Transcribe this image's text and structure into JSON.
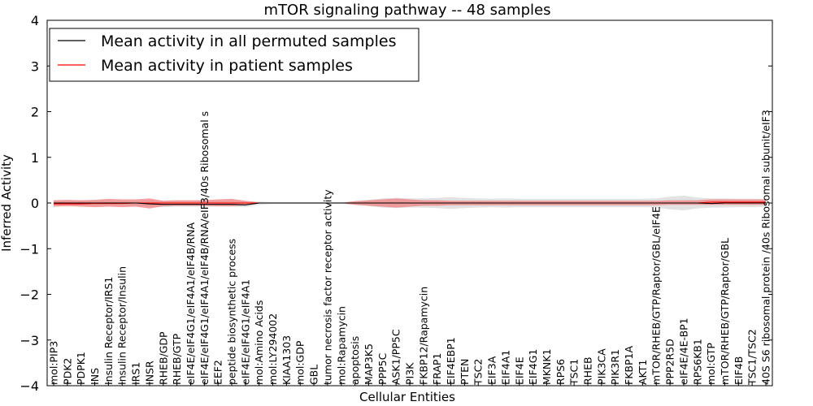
{
  "chart_data": {
    "type": "line",
    "title": "mTOR signaling pathway -- 48 samples",
    "xlabel": "Cellular Entities",
    "ylabel": "Inferred Activity",
    "ylim": [
      -4,
      4
    ],
    "yticks": [
      {
        "value": -4,
        "label": "−4"
      },
      {
        "value": -3,
        "label": "−3"
      },
      {
        "value": -2,
        "label": "−2"
      },
      {
        "value": -1,
        "label": "−1"
      },
      {
        "value": 0,
        "label": "0"
      },
      {
        "value": 1,
        "label": "1"
      },
      {
        "value": 2,
        "label": "2"
      },
      {
        "value": 3,
        "label": "3"
      },
      {
        "value": 4,
        "label": "4"
      }
    ],
    "legend": {
      "position": "top-left",
      "entries": [
        {
          "label": "Mean activity in all permuted samples",
          "color": "#000000"
        },
        {
          "label": "Mean activity in patient samples",
          "color": "#ff0000"
        }
      ]
    },
    "band_colors": {
      "permuted": "#bfbfbf",
      "patient": "#f08080"
    },
    "categories": [
      "mol:PIP3",
      "PDK2",
      "PDPK1",
      "INS",
      "Insulin Receptor/IRS1",
      "Insulin Receptor/Insulin",
      "IRS1",
      "INSR",
      "RHEB/GDP",
      "RHEB/GTP",
      "eIF4E/eIF4G1/eIF4A1/eIF4B/RNA",
      "eIF4E/eIF4G1/eIF4A1/eIF4B/RNA/eIF3/40s Ribosomal s",
      "EEF2",
      "peptide biosynthetic process",
      "eIF4E/eIF4G1/eIF4A1",
      "mol:Amino Acids",
      "mol:LY294002",
      "KIAA1303",
      "mol:GDP",
      "GBL",
      "tumor necrosis factor receptor activity",
      "mol:Rapamycin",
      "apoptosis",
      "MAP3K5",
      "PPP5C",
      "ASK1/PP5C",
      "PI3K",
      "FKBP12/Rapamycin",
      "FRAP1",
      "EIF4EBP1",
      "PTEN",
      "TSC2",
      "EIF3A",
      "EIF4A1",
      "EIF4E",
      "EIF4G1",
      "MKNK1",
      "RPS6",
      "TSC1",
      "RHEB",
      "PIK3CA",
      "PIK3R1",
      "FKBP1A",
      "AKT1",
      "mTOR/RHEB/GTP/Raptor/GBL/eIF4E",
      "PPP2R5D",
      "eIF4E/4E-BP1",
      "RPS6KB1",
      "mol:GTP",
      "mTOR/RHEB/GTP/Raptor/GBL",
      "EIF4B",
      "TSC1/TSC2",
      "40S S6 ribosomal protein /40s Ribosomal subunit/eIF3"
    ],
    "series": [
      {
        "name": "Mean activity in all permuted samples",
        "color": "#000000",
        "values": [
          0.0,
          0.0,
          0.0,
          0.0,
          0.0,
          0.0,
          0.0,
          -0.02,
          -0.03,
          -0.03,
          -0.03,
          -0.03,
          -0.03,
          -0.03,
          -0.04,
          0.0,
          0.0,
          0.0,
          0.0,
          0.0,
          0.0,
          0.0,
          0.0,
          0.0,
          0.0,
          0.0,
          0.0,
          0.0,
          0.0,
          0.0,
          0.0,
          0.0,
          0.0,
          0.0,
          0.0,
          0.0,
          0.0,
          0.0,
          0.0,
          0.0,
          0.0,
          0.0,
          0.0,
          0.0,
          0.0,
          0.0,
          0.0,
          0.0,
          -0.01,
          0.0,
          0.0,
          0.0,
          0.0
        ],
        "band_lower": [
          -0.06,
          -0.06,
          -0.06,
          -0.06,
          -0.06,
          -0.06,
          -0.06,
          -0.08,
          -0.09,
          -0.08,
          -0.08,
          -0.08,
          -0.08,
          -0.08,
          -0.09,
          -0.04,
          -0.02,
          -0.02,
          -0.02,
          -0.02,
          -0.02,
          -0.02,
          -0.04,
          -0.07,
          -0.1,
          -0.11,
          -0.1,
          -0.1,
          -0.11,
          -0.13,
          -0.11,
          -0.1,
          -0.09,
          -0.1,
          -0.09,
          -0.09,
          -0.09,
          -0.09,
          -0.09,
          -0.09,
          -0.09,
          -0.09,
          -0.09,
          -0.09,
          -0.1,
          -0.14,
          -0.16,
          -0.12,
          -0.1,
          -0.1,
          -0.09,
          -0.09,
          -0.08
        ],
        "band_upper": [
          0.06,
          0.06,
          0.06,
          0.06,
          0.06,
          0.06,
          0.06,
          0.06,
          0.05,
          0.05,
          0.05,
          0.05,
          0.05,
          0.05,
          0.04,
          0.03,
          0.02,
          0.02,
          0.02,
          0.02,
          0.02,
          0.02,
          0.04,
          0.07,
          0.1,
          0.11,
          0.1,
          0.1,
          0.11,
          0.13,
          0.11,
          0.1,
          0.09,
          0.1,
          0.09,
          0.09,
          0.09,
          0.09,
          0.09,
          0.09,
          0.09,
          0.09,
          0.09,
          0.09,
          0.1,
          0.14,
          0.16,
          0.12,
          0.1,
          0.1,
          0.09,
          0.09,
          0.08
        ]
      },
      {
        "name": "Mean activity in patient samples",
        "color": "#ff0000",
        "values": [
          -0.02,
          -0.02,
          -0.02,
          -0.01,
          -0.01,
          -0.01,
          0.0,
          0.0,
          0.0,
          0.0,
          0.0,
          0.0,
          0.0,
          0.0,
          0.0,
          0.0,
          0.0,
          0.0,
          0.0,
          0.0,
          0.0,
          0.0,
          0.0,
          0.0,
          0.0,
          0.0,
          0.0,
          0.0,
          0.0,
          0.0,
          0.0,
          0.0,
          0.0,
          0.0,
          0.0,
          0.0,
          0.0,
          0.0,
          0.0,
          0.0,
          0.0,
          0.0,
          0.0,
          0.0,
          0.0,
          0.0,
          0.0,
          0.0,
          0.02,
          0.02,
          0.02,
          0.02,
          0.02
        ],
        "band_lower": [
          -0.08,
          -0.07,
          -0.08,
          -0.09,
          -0.08,
          -0.09,
          -0.08,
          -0.12,
          -0.07,
          -0.06,
          -0.06,
          -0.06,
          -0.07,
          -0.07,
          -0.05,
          -0.01,
          0.0,
          0.0,
          0.0,
          0.0,
          0.0,
          0.0,
          -0.04,
          -0.06,
          -0.08,
          -0.1,
          -0.08,
          -0.06,
          -0.06,
          -0.05,
          -0.05,
          -0.05,
          -0.05,
          -0.05,
          -0.05,
          -0.05,
          -0.05,
          -0.05,
          -0.05,
          -0.05,
          -0.05,
          -0.05,
          -0.05,
          -0.05,
          -0.05,
          -0.04,
          -0.04,
          -0.04,
          -0.04,
          -0.04,
          -0.04,
          -0.04,
          -0.04
        ],
        "band_upper": [
          0.06,
          0.07,
          0.06,
          0.07,
          0.09,
          0.08,
          0.08,
          0.1,
          0.05,
          0.06,
          0.06,
          0.06,
          0.08,
          0.09,
          0.05,
          0.01,
          0.0,
          0.0,
          0.0,
          0.0,
          0.0,
          0.0,
          0.04,
          0.06,
          0.08,
          0.1,
          0.08,
          0.06,
          0.06,
          0.05,
          0.05,
          0.05,
          0.05,
          0.05,
          0.05,
          0.05,
          0.05,
          0.05,
          0.05,
          0.05,
          0.05,
          0.05,
          0.05,
          0.05,
          0.05,
          0.06,
          0.06,
          0.06,
          0.08,
          0.08,
          0.08,
          0.08,
          0.08
        ]
      }
    ]
  }
}
